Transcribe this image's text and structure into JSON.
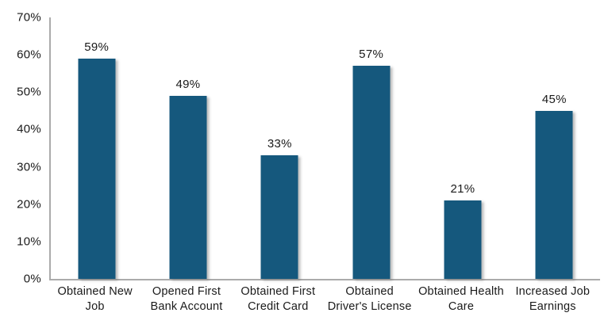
{
  "chart_data": {
    "type": "bar",
    "title": "",
    "xlabel": "",
    "ylabel": "",
    "categories": [
      "Obtained New Job",
      "Opened First Bank Account",
      "Obtained First Credit Card",
      "Obtained Driver's License",
      "Obtained Health Care",
      "Increased Job Earnings"
    ],
    "values": [
      59,
      49,
      33,
      57,
      21,
      45
    ],
    "data_labels": [
      "59%",
      "49%",
      "33%",
      "57%",
      "21%",
      "45%"
    ],
    "yticks": [
      {
        "value": 0,
        "label": "0%"
      },
      {
        "value": 10,
        "label": "10%"
      },
      {
        "value": 20,
        "label": "20%"
      },
      {
        "value": 30,
        "label": "30%"
      },
      {
        "value": 40,
        "label": "40%"
      },
      {
        "value": 50,
        "label": "50%"
      },
      {
        "value": 60,
        "label": "60%"
      },
      {
        "value": 70,
        "label": "70%"
      }
    ],
    "ylim": [
      0,
      70
    ],
    "grid": false,
    "legend": null,
    "bar_color": "#15587D",
    "axis_color": "#ABABAB",
    "text_color": "#1A1A1A"
  }
}
